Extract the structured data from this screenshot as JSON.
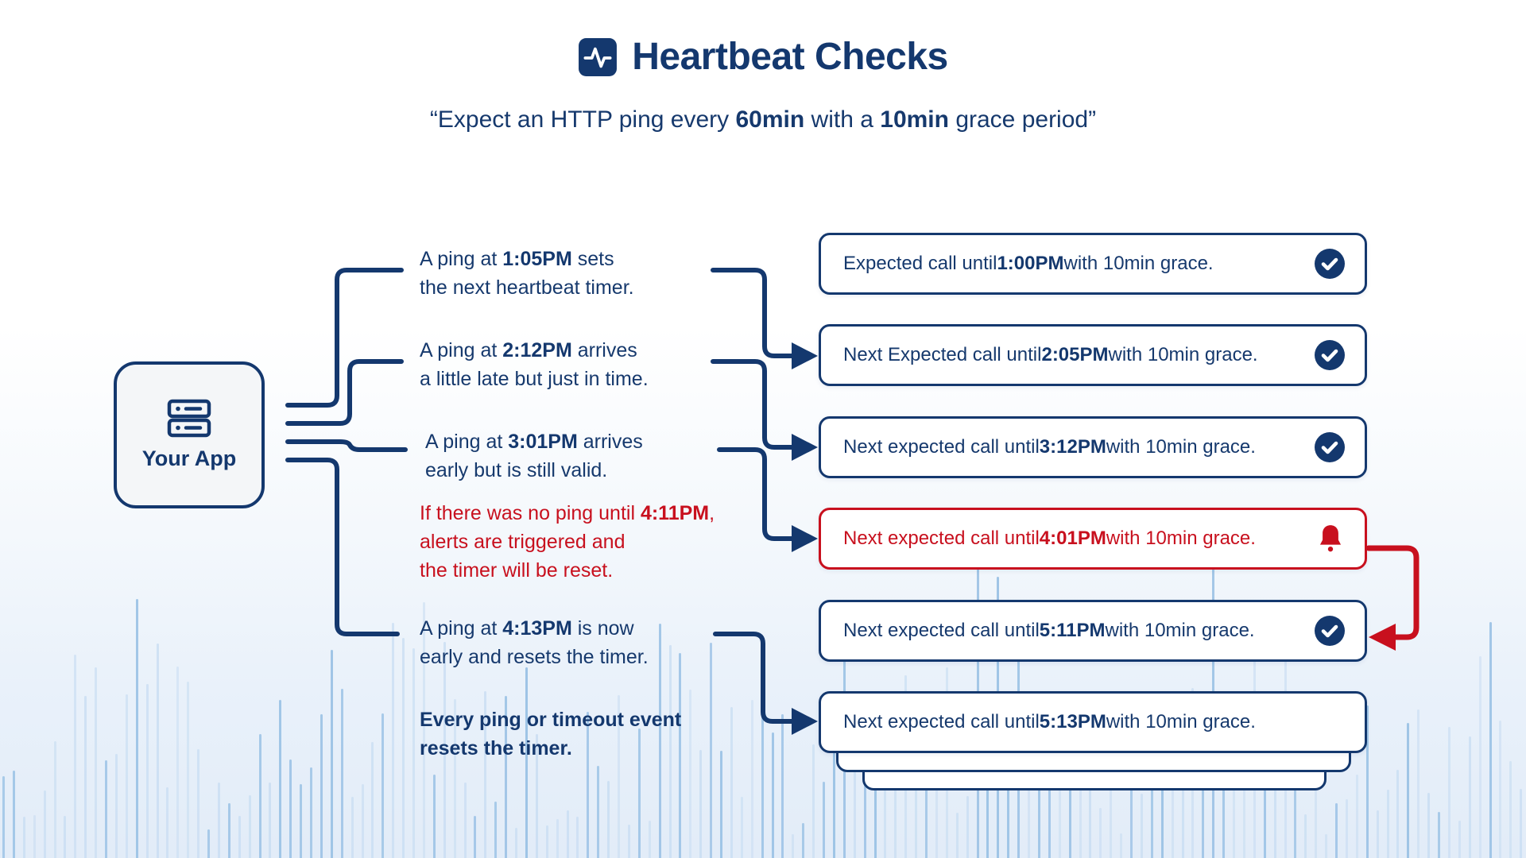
{
  "header": {
    "icon": "activity-pulse-icon",
    "title": "Heartbeat Checks",
    "subtitle": {
      "pre": "“Expect an HTTP ping every ",
      "bold1": "60min",
      "mid": " with a ",
      "bold2": "10min",
      "post": " grace period”"
    }
  },
  "app_node": {
    "icon": "server-icon",
    "label": "Your App"
  },
  "pings": [
    {
      "pre": "A ping at ",
      "time": "1:05PM",
      "post": " sets",
      "line2": "the next heartbeat timer.",
      "style": "normal"
    },
    {
      "pre": "A ping at ",
      "time": "2:12PM",
      "post": " arrives",
      "line2": "a little late but just in time.",
      "style": "normal"
    },
    {
      "pre": "A ping at ",
      "time": "3:01PM",
      "post": " arrives",
      "line2": "early but is still valid.",
      "style": "normal"
    },
    {
      "pre": "If there was no ping until ",
      "time": "4:11PM",
      "post": ",",
      "line2": "alerts are triggered and",
      "line3": "the timer will be reset.",
      "style": "alert"
    },
    {
      "pre": "A ping at ",
      "time": "4:13PM",
      "post": " is now",
      "line2": "early and resets the timer.",
      "style": "normal"
    },
    {
      "line1": "Every ping or timeout event",
      "line2": "resets the timer.",
      "style": "note"
    }
  ],
  "checks": [
    {
      "pre": "Expected call until ",
      "time": "1:00PM",
      "post": " with 10min grace.",
      "icon": "check",
      "variant": "ok"
    },
    {
      "pre": "Next Expected call until ",
      "time": "2:05PM",
      "post": " with 10min grace.",
      "icon": "check",
      "variant": "ok"
    },
    {
      "pre": "Next expected call until ",
      "time": "3:12PM",
      "post": " with 10min grace.",
      "icon": "check",
      "variant": "ok"
    },
    {
      "pre": "Next expected call until ",
      "time": "4:01PM",
      "post": " with 10min grace.",
      "icon": "bell",
      "variant": "alert"
    },
    {
      "pre": "Next expected call until ",
      "time": "5:11PM",
      "post": " with 10min grace.",
      "icon": "check",
      "variant": "ok"
    },
    {
      "pre": "Next expected call until ",
      "time": "5:13PM",
      "post": " with 10min grace.",
      "icon": "none",
      "variant": "ok"
    }
  ],
  "colors": {
    "navy": "#14386E",
    "red": "#C8101E",
    "card_background": "#FFFFFF",
    "app_background": "#F4F6F8",
    "wave_light": "#C8DDF2",
    "wave_dark": "#9EC4E6"
  }
}
